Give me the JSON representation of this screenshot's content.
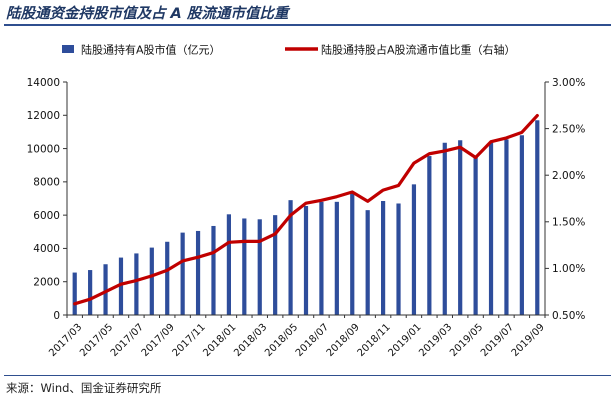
{
  "title": "陆股通资金持股市值及占 A 股流通市值比重",
  "source": "来源：Wind、国金证券研究所",
  "colors": {
    "bar": "#2e4d9b",
    "line": "#c00000",
    "frame": "#2f4f8f"
  },
  "chart_data": {
    "type": "bar",
    "legend_position": "top",
    "grid": false,
    "categories": [
      "2017/03",
      "2017/04",
      "2017/05",
      "2017/06",
      "2017/07",
      "2017/08",
      "2017/09",
      "2017/10",
      "2017/11",
      "2017/12",
      "2018/01",
      "2018/02",
      "2018/03",
      "2018/04",
      "2018/05",
      "2018/06",
      "2018/07",
      "2018/08",
      "2018/09",
      "2018/10",
      "2018/11",
      "2018/12",
      "2019/01",
      "2019/02",
      "2019/03",
      "2019/04",
      "2019/05",
      "2019/06",
      "2019/07",
      "2019/08",
      "2019/09"
    ],
    "x_tick_labels": [
      "2017/03",
      "2017/05",
      "2017/07",
      "2017/09",
      "2017/11",
      "2018/01",
      "2018/03",
      "2018/05",
      "2018/07",
      "2018/09",
      "2018/11",
      "2019/01",
      "2019/03",
      "2019/05",
      "2019/07",
      "2019/09"
    ],
    "series": [
      {
        "name": "陆股通持有A股市值（亿元）",
        "type": "bar",
        "axis": "left",
        "values": [
          2550,
          2700,
          3050,
          3450,
          3700,
          4050,
          4400,
          4950,
          5050,
          5350,
          6050,
          5800,
          5750,
          6000,
          6900,
          6550,
          6800,
          6800,
          7300,
          6300,
          6850,
          6700,
          7850,
          9550,
          10350,
          10500,
          9550,
          10350,
          10550,
          10800,
          11700
        ]
      },
      {
        "name": "陆股通持股占A股流通市值比重（右轴）",
        "type": "line",
        "axis": "right",
        "values": [
          0.62,
          0.67,
          0.75,
          0.83,
          0.87,
          0.92,
          0.98,
          1.08,
          1.12,
          1.17,
          1.28,
          1.29,
          1.29,
          1.37,
          1.57,
          1.7,
          1.73,
          1.77,
          1.82,
          1.72,
          1.84,
          1.89,
          2.13,
          2.23,
          2.26,
          2.3,
          2.19,
          2.36,
          2.4,
          2.46,
          2.64
        ]
      }
    ],
    "y_left": {
      "min": 0,
      "max": 14000,
      "ticks": [
        "0",
        "2000",
        "4000",
        "6000",
        "8000",
        "10000",
        "12000",
        "14000"
      ]
    },
    "y_right": {
      "min": 0.5,
      "max": 3.0,
      "ticks": [
        "0.50%",
        "1.00%",
        "1.50%",
        "2.00%",
        "2.50%",
        "3.00%"
      ]
    }
  }
}
